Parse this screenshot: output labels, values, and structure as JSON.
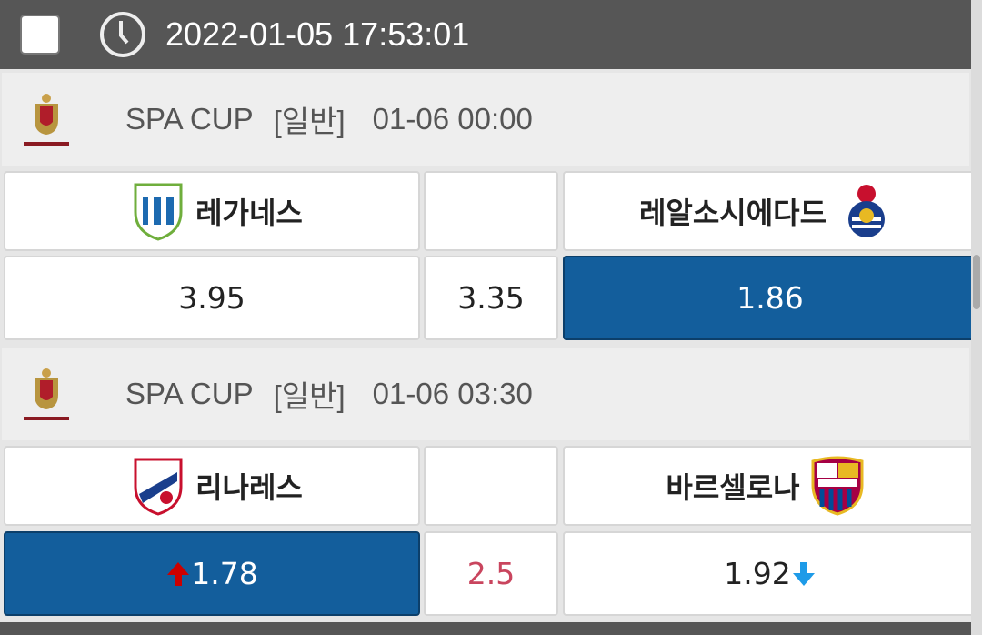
{
  "header": {
    "datetime": "2022-01-05 17:53:01",
    "icons": [
      "checkbox",
      "clock-icon"
    ]
  },
  "matches": [
    {
      "league": "SPA CUP",
      "type": "[일반]",
      "time": "01-06 00:00",
      "home": "레가네스",
      "away": "레알소시에다드",
      "odds": {
        "home": "3.95",
        "draw": "3.35",
        "away": "1.86"
      },
      "selected": "away"
    },
    {
      "league": "SPA CUP",
      "type": "[일반]",
      "time": "01-06 03:30",
      "home": "리나레스",
      "away": "바르셀로나",
      "odds": {
        "home": "1.78",
        "handicap": "2.5",
        "away": "1.92"
      },
      "selected": "home",
      "home_trend": "up",
      "away_trend": "down"
    }
  ],
  "colors": {
    "selected": "#135e9c",
    "handicap": "#c9455e",
    "up": "#cc0000",
    "down": "#1e9be8"
  }
}
